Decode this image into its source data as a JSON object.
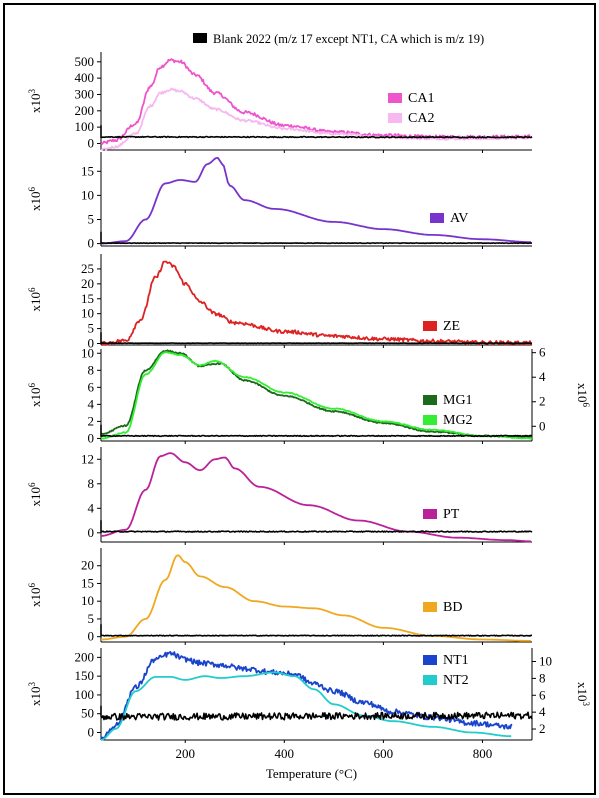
{
  "chart_data": {
    "type": "line",
    "xlabel": "Temperature (°C)",
    "x_ticks": [
      200,
      400,
      600,
      800
    ],
    "xlim": [
      30,
      900
    ],
    "blank_label": "Blank 2022 (m/z 17 except NT1, CA which is m/z 19)",
    "panels": [
      {
        "id": "CA",
        "y_multiplier": "x10^3",
        "ylim": [
          -40,
          560
        ],
        "y_ticks": [
          0,
          100,
          200,
          300,
          400,
          500
        ],
        "series": [
          {
            "name": "CA1",
            "color": "#ee55cc",
            "noise": 10,
            "x": [
              30,
              60,
              100,
              130,
              150,
              170,
              190,
              220,
              260,
              320,
              400,
              500,
              600,
              700,
              800,
              900
            ],
            "y": [
              0,
              20,
              120,
              350,
              470,
              510,
              500,
              420,
              310,
              190,
              110,
              70,
              50,
              40,
              40,
              42
            ]
          },
          {
            "name": "CA2",
            "color": "#f6b8ee",
            "noise": 7,
            "x": [
              30,
              60,
              100,
              130,
              150,
              170,
              190,
              220,
              260,
              320,
              400,
              500,
              600,
              700,
              800,
              900
            ],
            "y": [
              -40,
              -20,
              60,
              230,
              310,
              330,
              320,
              275,
              210,
              140,
              90,
              60,
              40,
              30,
              30,
              35
            ]
          },
          {
            "name": "Blank",
            "color": "#000000",
            "noise": 3,
            "blank": true,
            "x": [
              30,
              900
            ],
            "y": [
              40,
              38
            ]
          }
        ]
      },
      {
        "id": "AV",
        "y_multiplier": "x10^6",
        "ylim": [
          -0.5,
          19
        ],
        "y_ticks": [
          0,
          5,
          10,
          15
        ],
        "series": [
          {
            "name": "AV",
            "color": "#7733cc",
            "noise": 0,
            "x": [
              30,
              80,
              120,
              160,
              190,
              220,
              245,
              265,
              275,
              290,
              320,
              380,
              500,
              600,
              700,
              800,
              900
            ],
            "y": [
              0,
              0.5,
              5,
              12.5,
              13.2,
              12.8,
              16.5,
              17.8,
              16.5,
              12,
              9,
              7.2,
              4.5,
              3,
              1.8,
              0.9,
              0.3
            ]
          },
          {
            "name": "Blank",
            "color": "#000000",
            "noise": 0.05,
            "blank": true,
            "x": [
              30,
              900
            ],
            "y": [
              0.1,
              0.1
            ]
          }
        ]
      },
      {
        "id": "ZE",
        "y_multiplier": "x10^6",
        "ylim": [
          -0.5,
          30
        ],
        "y_ticks": [
          0,
          5,
          10,
          15,
          20,
          25
        ],
        "series": [
          {
            "name": "ZE",
            "color": "#dd2222",
            "noise": 0.6,
            "x": [
              30,
              80,
              110,
              140,
              160,
              175,
              200,
              230,
              260,
              300,
              400,
              500,
              600,
              700,
              800,
              900
            ],
            "y": [
              0,
              1,
              8,
              22,
              27.5,
              26,
              20,
              14,
              10,
              7,
              4,
              2.5,
              1.5,
              0.8,
              0.3,
              0.2
            ]
          },
          {
            "name": "Blank",
            "color": "#000000",
            "noise": 0.05,
            "blank": true,
            "x": [
              30,
              900
            ],
            "y": [
              0.1,
              0.1
            ]
          }
        ]
      },
      {
        "id": "MG",
        "y_multiplier": "x10^6",
        "ylim": [
          -0.3,
          10.5
        ],
        "y_ticks": [
          0,
          2,
          4,
          6,
          8,
          10
        ],
        "right_axis": {
          "multiplier": "x10^6",
          "ticks": [
            0,
            2,
            4,
            6
          ],
          "ylim": [
            -1.2,
            6.3
          ]
        },
        "series": [
          {
            "name": "MG1",
            "color": "#1a6b1a",
            "noise": 0.08,
            "x": [
              30,
              80,
              120,
              160,
              190,
              230,
              270,
              320,
              400,
              500,
              600,
              700,
              800,
              900
            ],
            "y": [
              0.5,
              1.5,
              8,
              10.3,
              10,
              8.5,
              8.8,
              6.8,
              5,
              3.2,
              1.8,
              0.8,
              0.3,
              0.2
            ]
          },
          {
            "name": "MG2",
            "color": "#33ee33",
            "noise": 0.05,
            "x": [
              30,
              80,
              120,
              160,
              190,
              230,
              260,
              320,
              400,
              500,
              600,
              700,
              800,
              900
            ],
            "y": [
              0,
              0.7,
              7.5,
              10.1,
              9.8,
              8.6,
              9.1,
              7.2,
              5.4,
              3.5,
              2,
              1,
              0.3,
              0
            ]
          },
          {
            "name": "Blank",
            "color": "#000000",
            "noise": 0.05,
            "blank": true,
            "x": [
              30,
              900
            ],
            "y": [
              0.3,
              0.3
            ]
          }
        ]
      },
      {
        "id": "PT",
        "y_multiplier": "x10^6",
        "ylim": [
          -1.5,
          14
        ],
        "y_ticks": [
          0,
          4,
          8,
          12
        ],
        "series": [
          {
            "name": "PT",
            "color": "#bb2299",
            "noise": 0,
            "x": [
              30,
              80,
              120,
              150,
              170,
              200,
              230,
              260,
              280,
              300,
              350,
              450,
              550,
              650,
              750,
              850,
              900
            ],
            "y": [
              -0.5,
              0.5,
              7,
              12.5,
              13,
              11.5,
              10.2,
              12,
              12.3,
              10.5,
              7.5,
              4.5,
              2,
              0.2,
              -0.8,
              -1.2,
              -1.4
            ]
          },
          {
            "name": "Blank",
            "color": "#000000",
            "noise": 0.08,
            "blank": true,
            "x": [
              30,
              900
            ],
            "y": [
              0.2,
              0.2
            ]
          }
        ]
      },
      {
        "id": "BD",
        "y_multiplier": "x10^6",
        "ylim": [
          -1.5,
          25
        ],
        "y_ticks": [
          0,
          5,
          10,
          15,
          20
        ],
        "series": [
          {
            "name": "BD",
            "color": "#f0a820",
            "noise": 0,
            "x": [
              30,
              80,
              120,
              160,
              185,
              200,
              230,
              280,
              340,
              400,
              460,
              520,
              600,
              700,
              800,
              900
            ],
            "y": [
              -0.8,
              0,
              5,
              16,
              23,
              21,
              17,
              14,
              10,
              8.5,
              8,
              6,
              2.5,
              0.2,
              -0.8,
              -1.2
            ]
          },
          {
            "name": "Blank",
            "color": "#000000",
            "noise": 0.1,
            "blank": true,
            "x": [
              30,
              900
            ],
            "y": [
              0.3,
              0.3
            ]
          }
        ]
      },
      {
        "id": "NT",
        "y_multiplier": "x10^3",
        "ylim": [
          -20,
          225
        ],
        "y_ticks": [
          0,
          50,
          100,
          150,
          200
        ],
        "right_axis": {
          "multiplier": "x10^3",
          "ticks": [
            2,
            4,
            6,
            8,
            10
          ],
          "ylim": [
            0.7,
            11.6
          ]
        },
        "series": [
          {
            "name": "NT1",
            "color": "#1a44cc",
            "noise": 7,
            "x": [
              30,
              60,
              100,
              140,
              170,
              200,
              230,
              270,
              320,
              380,
              420,
              460,
              500,
              560,
              620,
              700,
              780,
              860
            ],
            "y": [
              -15,
              20,
              120,
              195,
              210,
              195,
              185,
              180,
              170,
              160,
              155,
              130,
              110,
              80,
              55,
              40,
              25,
              15
            ]
          },
          {
            "name": "NT2",
            "color": "#22cccc",
            "noise": 0,
            "x": [
              30,
              60,
              100,
              140,
              170,
              200,
              240,
              270,
              320,
              380,
              420,
              460,
              500,
              560,
              620,
              700,
              780,
              860
            ],
            "y": [
              -20,
              10,
              110,
              148,
              148,
              140,
              150,
              145,
              150,
              160,
              150,
              115,
              75,
              45,
              30,
              15,
              0,
              -10
            ]
          },
          {
            "name": "Blank",
            "color": "#000000",
            "noise": 9,
            "blank": true,
            "x": [
              30,
              900
            ],
            "y": [
              42,
              45
            ]
          }
        ]
      }
    ]
  }
}
